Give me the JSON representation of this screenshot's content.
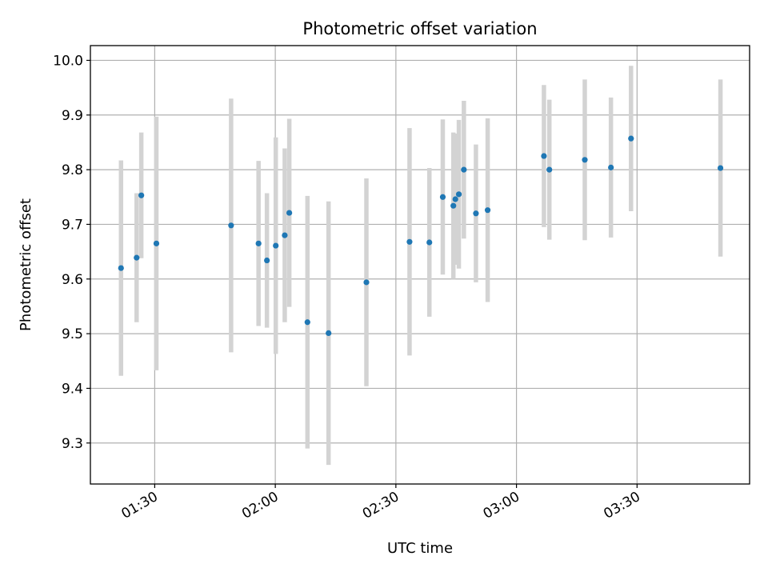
{
  "chart_data": {
    "type": "scatter",
    "title": "Photometric offset variation",
    "xlabel": "UTC time",
    "ylabel": "Photometric offset",
    "x_ticks": [
      "01:30",
      "02:00",
      "02:30",
      "03:00",
      "03:30"
    ],
    "x_tick_minutes": [
      90,
      120,
      150,
      180,
      210
    ],
    "xlim_minutes": [
      74,
      238
    ],
    "ylim": [
      9.225,
      10.027
    ],
    "y_ticks": [
      9.3,
      9.4,
      9.5,
      9.6,
      9.7,
      9.8,
      9.9,
      10.0
    ],
    "grid": true,
    "colors": {
      "point": "#1f77b4",
      "errorbar": "#d3d3d3",
      "grid": "#b0b0b0"
    },
    "series": [
      {
        "points": [
          {
            "x": "01:21:37",
            "y": 9.62,
            "err": 0.197
          },
          {
            "x": "01:25:30",
            "y": 9.639,
            "err": 0.118
          },
          {
            "x": "01:26:40",
            "y": 9.753,
            "err": 0.115
          },
          {
            "x": "01:30:25",
            "y": 9.665,
            "err": 0.232
          },
          {
            "x": "01:49:00",
            "y": 9.698,
            "err": 0.232
          },
          {
            "x": "01:55:50",
            "y": 9.665,
            "err": 0.151
          },
          {
            "x": "01:57:55",
            "y": 9.634,
            "err": 0.123
          },
          {
            "x": "02:00:07",
            "y": 9.661,
            "err": 0.198
          },
          {
            "x": "02:02:21",
            "y": 9.68,
            "err": 0.159
          },
          {
            "x": "02:03:29",
            "y": 9.721,
            "err": 0.172
          },
          {
            "x": "02:08:00",
            "y": 9.521,
            "err": 0.231
          },
          {
            "x": "02:13:15",
            "y": 9.501,
            "err": 0.241
          },
          {
            "x": "02:22:40",
            "y": 9.594,
            "err": 0.19
          },
          {
            "x": "02:33:24",
            "y": 9.668,
            "err": 0.208
          },
          {
            "x": "02:38:20",
            "y": 9.667,
            "err": 0.136
          },
          {
            "x": "02:41:40",
            "y": 9.75,
            "err": 0.142
          },
          {
            "x": "02:44:18",
            "y": 9.734,
            "err": 0.134
          },
          {
            "x": "02:44:48",
            "y": 9.746,
            "err": 0.12
          },
          {
            "x": "02:45:40",
            "y": 9.755,
            "err": 0.136
          },
          {
            "x": "02:46:55",
            "y": 9.8,
            "err": 0.126
          },
          {
            "x": "02:49:55",
            "y": 9.72,
            "err": 0.126
          },
          {
            "x": "02:52:50",
            "y": 9.726,
            "err": 0.168
          },
          {
            "x": "03:06:50",
            "y": 9.825,
            "err": 0.13
          },
          {
            "x": "03:08:11",
            "y": 9.8,
            "err": 0.128
          },
          {
            "x": "03:17:00",
            "y": 9.818,
            "err": 0.147
          },
          {
            "x": "03:23:30",
            "y": 9.804,
            "err": 0.128
          },
          {
            "x": "03:28:30",
            "y": 9.857,
            "err": 0.133
          },
          {
            "x": "03:50:45",
            "y": 9.803,
            "err": 0.162
          }
        ]
      }
    ]
  }
}
